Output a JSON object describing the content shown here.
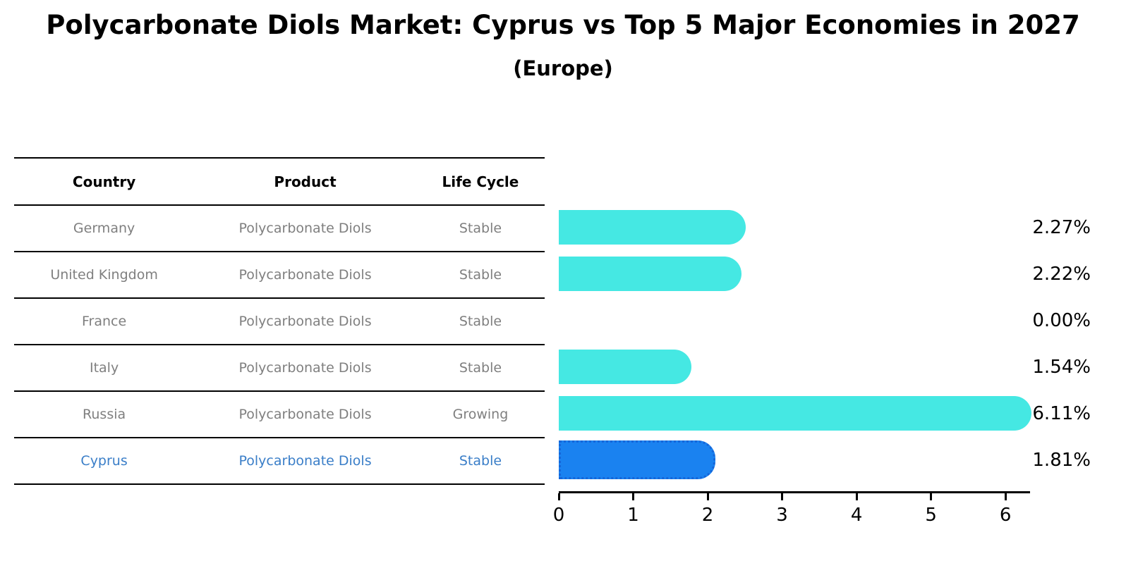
{
  "title": "Polycarbonate Diols Market: Cyprus vs Top 5 Major Economies in 2027",
  "subtitle": "(Europe)",
  "table": {
    "headers": [
      "Country",
      "Product",
      "Life Cycle"
    ],
    "rows": [
      {
        "country": "Germany",
        "product": "Polycarbonate Diols",
        "life_cycle": "Stable",
        "highlight": false
      },
      {
        "country": "United Kingdom",
        "product": "Polycarbonate Diols",
        "life_cycle": "Stable",
        "highlight": false
      },
      {
        "country": "France",
        "product": "Polycarbonate Diols",
        "life_cycle": "Stable",
        "highlight": false
      },
      {
        "country": "Italy",
        "product": "Polycarbonate Diols",
        "life_cycle": "Stable",
        "highlight": false
      },
      {
        "country": "Russia",
        "product": "Polycarbonate Diols",
        "life_cycle": "Growing",
        "highlight": false
      },
      {
        "country": "Cyprus",
        "product": "Polycarbonate Diols",
        "life_cycle": "Stable",
        "highlight": true
      }
    ]
  },
  "chart_data": {
    "type": "bar",
    "orientation": "horizontal",
    "title": "Polycarbonate Diols Market: Cyprus vs Top 5 Major Economies in 2027",
    "subtitle": "(Europe)",
    "categories": [
      "Germany",
      "United Kingdom",
      "France",
      "Italy",
      "Russia",
      "Cyprus"
    ],
    "values": [
      2.27,
      2.22,
      0.0,
      1.54,
      6.11,
      1.81
    ],
    "value_labels": [
      "2.27%",
      "2.22%",
      "0.00%",
      "1.54%",
      "6.11%",
      "1.81%"
    ],
    "highlight_index": 5,
    "x_ticks": [
      0,
      1,
      2,
      3,
      4,
      5,
      6
    ],
    "xlim": [
      0,
      6.33
    ],
    "grid": false,
    "legend": "none",
    "xlabel": "",
    "ylabel": ""
  },
  "colors": {
    "bar": "#45E8E3",
    "highlight_bar": "#1A82F0",
    "highlight_bar_border": "#1566D9",
    "highlight_text": "#3A7EC8",
    "table_text": "#7F7F7F",
    "axis": "#000000"
  }
}
